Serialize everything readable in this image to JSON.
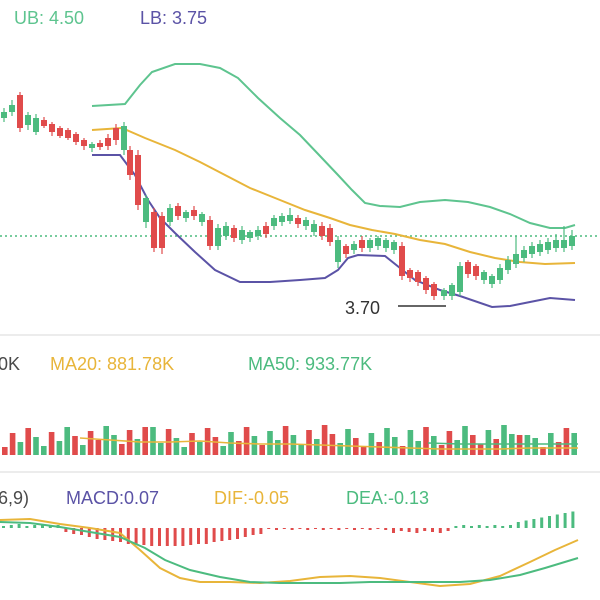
{
  "colors": {
    "up": "#4cbb7f",
    "down": "#e04b4b",
    "ub": "#5ec48f",
    "lb": "#5b53a6",
    "ma20": "#e8b53a",
    "ma50": "#4cbb7f",
    "macd": "#5b53a6",
    "dif": "#e8b53a",
    "dea": "#4cbb7f",
    "divider": "#d9d9d9",
    "ref_line": "#4cbb7f"
  },
  "price_panel": {
    "ub_label": "UB: 4.50",
    "lb_label": "LB: 3.75",
    "low_marker_label": "3.70"
  },
  "volume_panel": {
    "left_partial_label": "0K",
    "ma20_label": "MA20: 881.78K",
    "ma50_label": "MA50: 933.77K"
  },
  "macd_panel": {
    "left_partial_label": "6,9)",
    "macd_label": "MACD:0.07",
    "dif_label": "DIF:-0.05",
    "dea_label": "DEA:-0.13"
  }
}
